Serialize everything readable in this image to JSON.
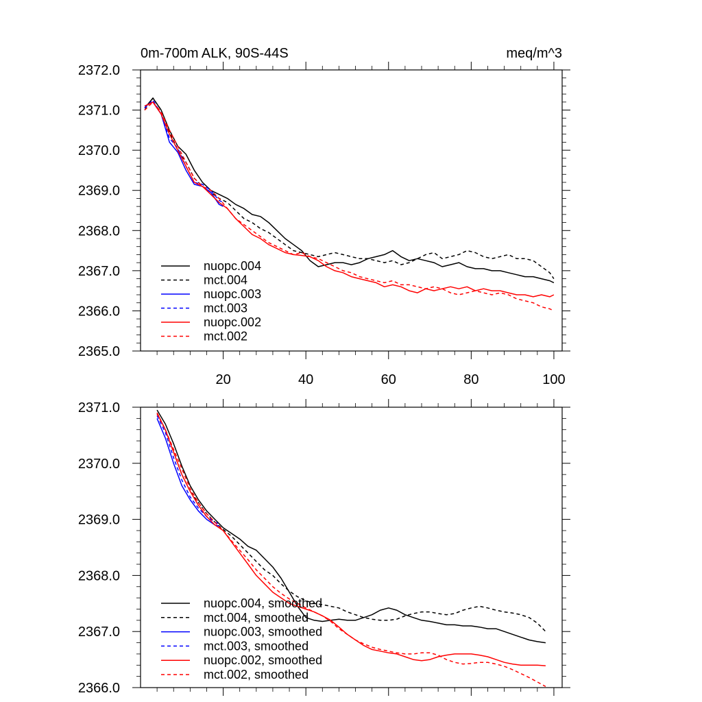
{
  "chart_data": [
    {
      "type": "line",
      "title_left": "0m-700m ALK, 90S-44S",
      "title_right": "meq/m^3",
      "xlabel": "",
      "ylabel": "",
      "xlim": [
        0,
        102
      ],
      "ylim": [
        2365.0,
        2372.0
      ],
      "xticks": [
        20,
        40,
        60,
        80,
        100
      ],
      "yticks": [
        2365.0,
        2366.0,
        2367.0,
        2368.0,
        2369.0,
        2370.0,
        2371.0,
        2372.0
      ],
      "legend": {
        "placement": "bottom-left"
      },
      "series": [
        {
          "name": "nuopc.004",
          "color": "#000000",
          "dash": "solid",
          "x": [
            1,
            3,
            5,
            7,
            9,
            11,
            13,
            15,
            17,
            19,
            21,
            23,
            25,
            27,
            29,
            31,
            33,
            35,
            37,
            39,
            41,
            43,
            45,
            47,
            49,
            51,
            53,
            55,
            57,
            59,
            61,
            63,
            65,
            67,
            69,
            71,
            73,
            75,
            77,
            79,
            81,
            83,
            85,
            87,
            89,
            91,
            93,
            95,
            97,
            99,
            100
          ],
          "y": [
            2371.05,
            2371.3,
            2371.0,
            2370.5,
            2370.1,
            2369.9,
            2369.5,
            2369.2,
            2369.0,
            2368.9,
            2368.8,
            2368.65,
            2368.55,
            2368.4,
            2368.35,
            2368.2,
            2368.0,
            2367.8,
            2367.65,
            2367.5,
            2367.25,
            2367.1,
            2367.15,
            2367.2,
            2367.2,
            2367.15,
            2367.2,
            2367.3,
            2367.35,
            2367.4,
            2367.5,
            2367.35,
            2367.25,
            2367.3,
            2367.25,
            2367.2,
            2367.1,
            2367.15,
            2367.2,
            2367.1,
            2367.05,
            2367.05,
            2367.0,
            2367.0,
            2366.95,
            2366.9,
            2366.85,
            2366.85,
            2366.8,
            2366.75,
            2366.7
          ]
        },
        {
          "name": "mct.004",
          "color": "#000000",
          "dash": "dashed",
          "x": [
            1,
            3,
            5,
            7,
            9,
            11,
            13,
            15,
            17,
            19,
            21,
            23,
            25,
            27,
            29,
            31,
            33,
            35,
            37,
            39,
            41,
            43,
            45,
            47,
            49,
            51,
            53,
            55,
            57,
            59,
            61,
            63,
            65,
            67,
            69,
            71,
            73,
            75,
            77,
            79,
            81,
            83,
            85,
            87,
            89,
            91,
            93,
            95,
            97,
            99,
            100
          ],
          "y": [
            2371.0,
            2371.3,
            2371.0,
            2370.45,
            2370.0,
            2369.7,
            2369.3,
            2369.1,
            2368.95,
            2368.8,
            2368.7,
            2368.5,
            2368.3,
            2368.2,
            2368.05,
            2367.95,
            2367.8,
            2367.65,
            2367.5,
            2367.45,
            2367.4,
            2367.35,
            2367.4,
            2367.45,
            2367.4,
            2367.35,
            2367.3,
            2367.3,
            2367.25,
            2367.2,
            2367.25,
            2367.15,
            2367.2,
            2367.3,
            2367.4,
            2367.45,
            2367.3,
            2367.35,
            2367.4,
            2367.5,
            2367.45,
            2367.35,
            2367.3,
            2367.35,
            2367.4,
            2367.3,
            2367.3,
            2367.25,
            2367.1,
            2366.95,
            2366.8
          ]
        },
        {
          "name": "nuopc.003",
          "color": "#0000ff",
          "dash": "solid",
          "x": [
            1,
            3,
            5,
            7,
            9,
            11,
            13,
            15,
            17,
            19,
            20
          ],
          "y": [
            2371.1,
            2371.2,
            2370.9,
            2370.2,
            2369.95,
            2369.5,
            2369.15,
            2369.1,
            2368.95,
            2368.65,
            2368.6
          ]
        },
        {
          "name": "mct.003",
          "color": "#0000ff",
          "dash": "dashed",
          "x": [
            1,
            3,
            5,
            7,
            9,
            11,
            13,
            15,
            17,
            19,
            20
          ],
          "y": [
            2371.05,
            2371.25,
            2370.9,
            2370.3,
            2370.05,
            2369.6,
            2369.2,
            2369.15,
            2369.0,
            2368.75,
            2368.7
          ]
        },
        {
          "name": "nuopc.002",
          "color": "#ff0000",
          "dash": "solid",
          "x": [
            1,
            3,
            5,
            7,
            9,
            11,
            13,
            15,
            17,
            19,
            21,
            23,
            25,
            27,
            29,
            31,
            33,
            35,
            37,
            39,
            41,
            43,
            45,
            47,
            49,
            51,
            53,
            55,
            57,
            59,
            61,
            63,
            65,
            67,
            69,
            71,
            73,
            75,
            77,
            79,
            81,
            83,
            85,
            87,
            89,
            91,
            93,
            95,
            97,
            99,
            100
          ],
          "y": [
            2371.1,
            2371.2,
            2370.9,
            2370.4,
            2370.0,
            2369.6,
            2369.2,
            2369.1,
            2368.9,
            2368.7,
            2368.55,
            2368.3,
            2368.1,
            2367.9,
            2367.8,
            2367.65,
            2367.55,
            2367.45,
            2367.4,
            2367.38,
            2367.35,
            2367.25,
            2367.1,
            2367.0,
            2366.95,
            2366.85,
            2366.8,
            2366.75,
            2366.7,
            2366.6,
            2366.65,
            2366.6,
            2366.5,
            2366.45,
            2366.55,
            2366.5,
            2366.55,
            2366.6,
            2366.55,
            2366.6,
            2366.5,
            2366.55,
            2366.5,
            2366.5,
            2366.45,
            2366.4,
            2366.4,
            2366.35,
            2366.4,
            2366.35,
            2366.4
          ]
        },
        {
          "name": "mct.002",
          "color": "#ff0000",
          "dash": "dashed",
          "x": [
            1,
            3,
            5,
            7,
            9,
            11,
            13,
            15,
            17,
            19,
            21,
            23,
            25,
            27,
            29,
            31,
            33,
            35,
            37,
            39,
            41,
            43,
            45,
            47,
            49,
            51,
            53,
            55,
            57,
            59,
            61,
            63,
            65,
            67,
            69,
            71,
            73,
            75,
            77,
            79,
            81,
            83,
            85,
            87,
            89,
            91,
            93,
            95,
            97,
            99,
            100
          ],
          "y": [
            2371.0,
            2371.2,
            2370.95,
            2370.5,
            2370.1,
            2369.7,
            2369.3,
            2369.1,
            2369.0,
            2368.8,
            2368.55,
            2368.3,
            2368.15,
            2368.0,
            2367.85,
            2367.7,
            2367.6,
            2367.5,
            2367.4,
            2367.45,
            2367.35,
            2367.3,
            2367.2,
            2367.1,
            2367.0,
            2366.95,
            2366.85,
            2366.8,
            2366.75,
            2366.7,
            2366.75,
            2366.65,
            2366.65,
            2366.6,
            2366.55,
            2366.6,
            2366.55,
            2366.45,
            2366.4,
            2366.45,
            2366.5,
            2366.45,
            2366.4,
            2366.45,
            2366.4,
            2366.3,
            2366.25,
            2366.2,
            2366.1,
            2366.05,
            2366.0
          ]
        }
      ]
    },
    {
      "type": "line",
      "title_left": "",
      "title_right": "",
      "xlabel": "",
      "ylabel": "",
      "xlim": [
        0,
        102
      ],
      "ylim": [
        2366.0,
        2371.0
      ],
      "xticks": [
        20,
        40,
        60,
        80,
        100
      ],
      "yticks": [
        2366.0,
        2367.0,
        2368.0,
        2369.0,
        2370.0,
        2371.0
      ],
      "show_xtick_labels": false,
      "legend": {
        "placement": "bottom-left"
      },
      "series": [
        {
          "name": "nuopc.004, smoothed",
          "color": "#000000",
          "dash": "solid",
          "x": [
            4,
            6,
            8,
            10,
            12,
            14,
            16,
            18,
            20,
            22,
            24,
            26,
            28,
            30,
            32,
            34,
            36,
            38,
            40,
            42,
            44,
            46,
            48,
            50,
            52,
            54,
            56,
            58,
            60,
            62,
            64,
            66,
            68,
            70,
            72,
            74,
            76,
            78,
            80,
            82,
            84,
            86,
            88,
            90,
            92,
            94,
            96,
            98
          ],
          "y": [
            2370.95,
            2370.7,
            2370.35,
            2369.95,
            2369.6,
            2369.35,
            2369.15,
            2369.0,
            2368.85,
            2368.75,
            2368.65,
            2368.52,
            2368.45,
            2368.3,
            2368.15,
            2367.95,
            2367.7,
            2367.45,
            2367.25,
            2367.2,
            2367.18,
            2367.2,
            2367.22,
            2367.2,
            2367.2,
            2367.25,
            2367.3,
            2367.38,
            2367.42,
            2367.38,
            2367.3,
            2367.25,
            2367.2,
            2367.18,
            2367.15,
            2367.12,
            2367.12,
            2367.1,
            2367.1,
            2367.08,
            2367.05,
            2367.05,
            2367.0,
            2366.95,
            2366.9,
            2366.85,
            2366.82,
            2366.8
          ]
        },
        {
          "name": "mct.004, smoothed",
          "color": "#000000",
          "dash": "dashed",
          "x": [
            4,
            6,
            8,
            10,
            12,
            14,
            16,
            18,
            20,
            22,
            24,
            26,
            28,
            30,
            32,
            34,
            36,
            38,
            40,
            42,
            44,
            46,
            48,
            50,
            52,
            54,
            56,
            58,
            60,
            62,
            64,
            66,
            68,
            70,
            72,
            74,
            76,
            78,
            80,
            82,
            84,
            86,
            88,
            90,
            92,
            94,
            96,
            98
          ],
          "y": [
            2370.9,
            2370.6,
            2370.2,
            2369.8,
            2369.5,
            2369.3,
            2369.1,
            2368.95,
            2368.82,
            2368.7,
            2368.55,
            2368.4,
            2368.25,
            2368.1,
            2368.0,
            2367.85,
            2367.72,
            2367.62,
            2367.55,
            2367.5,
            2367.48,
            2367.45,
            2367.42,
            2367.35,
            2367.3,
            2367.25,
            2367.22,
            2367.2,
            2367.2,
            2367.22,
            2367.28,
            2367.32,
            2367.35,
            2367.35,
            2367.32,
            2367.3,
            2367.32,
            2367.38,
            2367.42,
            2367.45,
            2367.42,
            2367.38,
            2367.35,
            2367.33,
            2367.3,
            2367.25,
            2367.15,
            2367.0
          ]
        },
        {
          "name": "nuopc.003, smoothed",
          "color": "#0000ff",
          "dash": "solid",
          "x": [
            4,
            6,
            8,
            10,
            12,
            14,
            16,
            18,
            19
          ],
          "y": [
            2370.8,
            2370.45,
            2370.0,
            2369.6,
            2369.35,
            2369.15,
            2369.0,
            2368.9,
            2368.88
          ]
        },
        {
          "name": "mct.003, smoothed",
          "color": "#0000ff",
          "dash": "dashed",
          "x": [
            4,
            6,
            8,
            10,
            12,
            14,
            16,
            18,
            19
          ],
          "y": [
            2370.85,
            2370.55,
            2370.1,
            2369.7,
            2369.4,
            2369.2,
            2369.05,
            2368.95,
            2368.92
          ]
        },
        {
          "name": "nuopc.002, smoothed",
          "color": "#ff0000",
          "dash": "solid",
          "x": [
            4,
            6,
            8,
            10,
            12,
            14,
            16,
            18,
            20,
            22,
            24,
            26,
            28,
            30,
            32,
            34,
            36,
            38,
            40,
            42,
            44,
            46,
            48,
            50,
            52,
            54,
            56,
            58,
            60,
            62,
            64,
            66,
            68,
            70,
            72,
            74,
            76,
            78,
            80,
            82,
            84,
            86,
            88,
            90,
            92,
            94,
            96,
            98
          ],
          "y": [
            2370.9,
            2370.6,
            2370.2,
            2369.8,
            2369.5,
            2369.25,
            2369.05,
            2368.9,
            2368.8,
            2368.6,
            2368.4,
            2368.2,
            2368.0,
            2367.85,
            2367.7,
            2367.6,
            2367.5,
            2367.45,
            2367.4,
            2367.35,
            2367.28,
            2367.2,
            2367.08,
            2366.95,
            2366.85,
            2366.75,
            2366.68,
            2366.65,
            2366.62,
            2366.6,
            2366.55,
            2366.5,
            2366.48,
            2366.5,
            2366.55,
            2366.58,
            2366.6,
            2366.6,
            2366.6,
            2366.58,
            2366.55,
            2366.5,
            2366.45,
            2366.42,
            2366.4,
            2366.4,
            2366.4,
            2366.39
          ]
        },
        {
          "name": "mct.002, smoothed",
          "color": "#ff0000",
          "dash": "dashed",
          "x": [
            4,
            6,
            8,
            10,
            12,
            14,
            16,
            18,
            20,
            22,
            24,
            26,
            28,
            30,
            32,
            34,
            36,
            38,
            40,
            42,
            44,
            46,
            48,
            50,
            52,
            54,
            56,
            58,
            60,
            62,
            64,
            66,
            68,
            70,
            72,
            74,
            76,
            78,
            80,
            82,
            84,
            86,
            88,
            90,
            92,
            94,
            96,
            98
          ],
          "y": [
            2370.88,
            2370.6,
            2370.25,
            2369.9,
            2369.55,
            2369.3,
            2369.1,
            2368.95,
            2368.8,
            2368.62,
            2368.45,
            2368.28,
            2368.1,
            2367.95,
            2367.8,
            2367.68,
            2367.58,
            2367.5,
            2367.42,
            2367.35,
            2367.28,
            2367.18,
            2367.05,
            2366.95,
            2366.85,
            2366.78,
            2366.72,
            2366.68,
            2366.65,
            2366.62,
            2366.6,
            2366.6,
            2366.62,
            2366.62,
            2366.58,
            2366.5,
            2366.45,
            2366.42,
            2366.43,
            2366.45,
            2366.45,
            2366.42,
            2366.38,
            2366.32,
            2366.25,
            2366.18,
            2366.1,
            2366.02
          ]
        }
      ]
    }
  ]
}
